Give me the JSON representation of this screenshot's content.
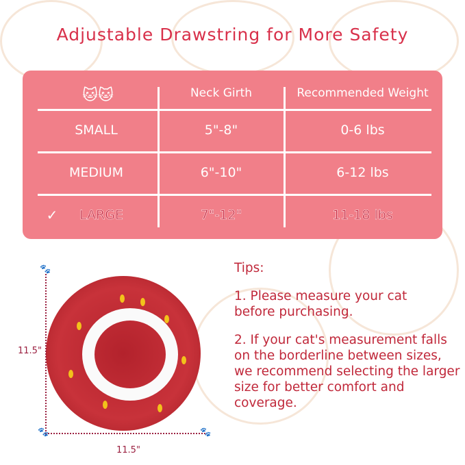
{
  "title": "Adjustable Drawstring for More Safety",
  "table": {
    "headers": [
      "Neck Girth",
      "Recommended Weight"
    ],
    "rows": [
      {
        "size": "SMALL",
        "girth": "5\"-8\"",
        "weight": "0-6 lbs",
        "selected": false
      },
      {
        "size": "MEDIUM",
        "girth": "6\"-10\"",
        "weight": "6-12 lbs",
        "selected": false
      },
      {
        "size": "LARGE",
        "girth": "7\"-12\"",
        "weight": "11-18 lbs",
        "selected": true
      }
    ]
  },
  "product": {
    "height": "11.5\"",
    "width": "11.5\""
  },
  "tips": {
    "heading": "Tips:",
    "items": [
      "1. Please measure your cat before purchasing.",
      "2. If your cat's measurement falls on the borderline between sizes, we recommend selecting the larger size for better comfort and coverage."
    ]
  },
  "colors": {
    "accent": "#d8304a",
    "table_bg": "#f17f89"
  }
}
